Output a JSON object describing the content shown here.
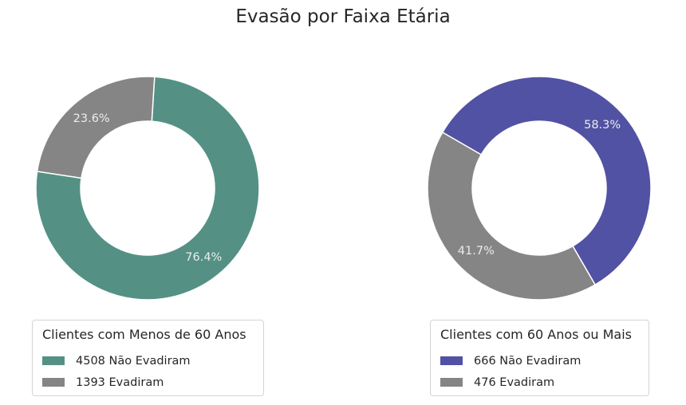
{
  "title": "Evasão por Faixa Etária",
  "chart_data": [
    {
      "type": "pie",
      "variant": "donut",
      "legend_title": "Clientes com Menos de 60 Anos",
      "legend_placement": "bottom",
      "slices": [
        {
          "label": "4508 Não Evadiram",
          "value": 4508,
          "pct_label": "76.4%",
          "color": "#549184"
        },
        {
          "label": "1393 Evadiram",
          "value": 1393,
          "pct_label": "23.6%",
          "color": "#858585"
        }
      ]
    },
    {
      "type": "pie",
      "variant": "donut",
      "legend_title": "Clientes com 60 Anos ou Mais",
      "legend_placement": "bottom",
      "slices": [
        {
          "label": "666 Não Evadiram",
          "value": 666,
          "pct_label": "58.3%",
          "color": "#5152a3"
        },
        {
          "label": "476 Evadiram",
          "value": 476,
          "pct_label": "41.7%",
          "color": "#858585"
        }
      ]
    }
  ]
}
